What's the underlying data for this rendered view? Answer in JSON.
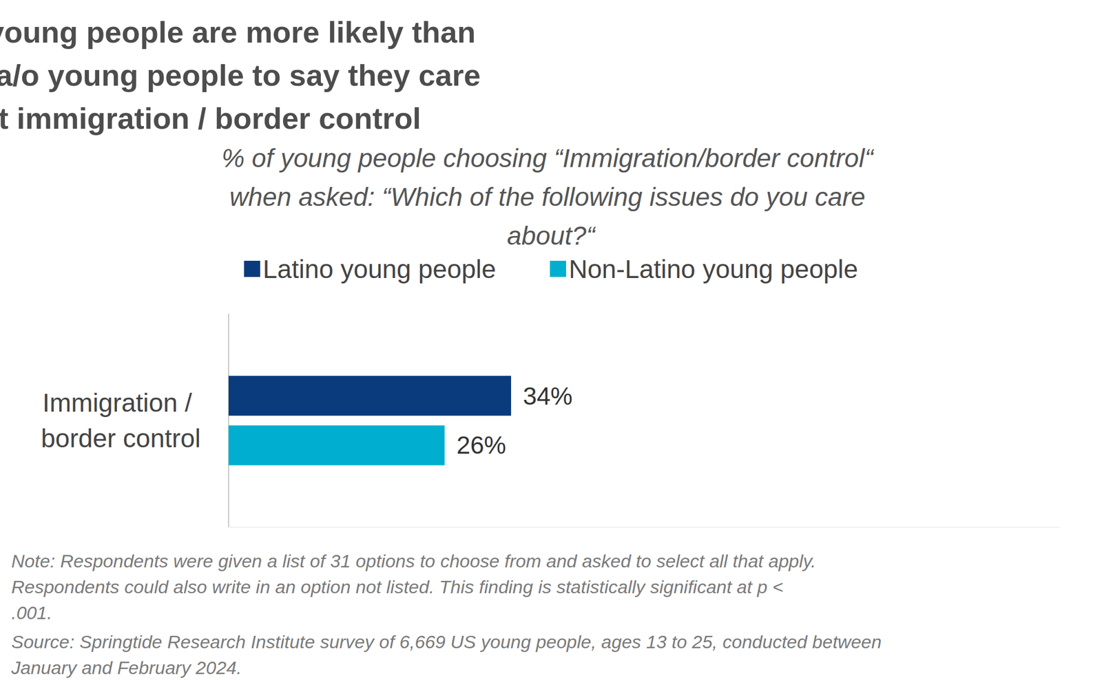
{
  "chart_data": {
    "type": "bar",
    "orientation": "horizontal",
    "title": "Latina/o young people are more likely than non-Latina/o young people to say they care about immigration / border control",
    "subtitle": "% of young people choosing “Immigration/border control“ when asked: “Which of the following issues do you care about?“",
    "note": "Note: Respondents were given a list of 31 options to choose from and asked to select all that apply. Respondents could also write in an option not listed. This finding is statistically significant at p < .001.",
    "source": "Source: Springtide Research Institute survey of 6,669 US young people, ages 13 to 25, conducted between January and February 2024.",
    "categories": [
      "Immigration / border control"
    ],
    "series": [
      {
        "name": "Latino young people",
        "color": "#0a3b7c",
        "values": [
          34
        ],
        "value_labels": [
          "34%"
        ]
      },
      {
        "name": "Non-Latino young people",
        "color": "#00afcf",
        "values": [
          26
        ],
        "value_labels": [
          "26%"
        ]
      }
    ],
    "xlim": [
      0,
      100
    ],
    "legend": "top",
    "data_labels": true,
    "tick_labels": "y",
    "grid": false
  }
}
